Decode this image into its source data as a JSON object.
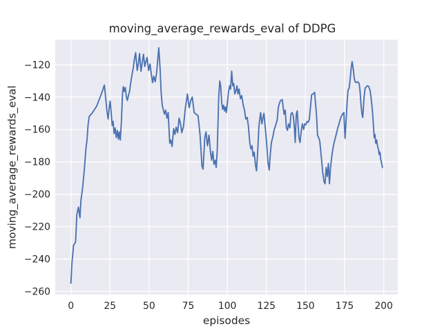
{
  "figure": {
    "title": "moving_average_rewards_eval of DDPG",
    "xlabel": "episodes",
    "ylabel": "moving_average_rewards_eval"
  },
  "chart_data": {
    "type": "line",
    "title": "moving_average_rewards_eval of DDPG",
    "xlabel": "episodes",
    "ylabel": "moving_average_rewards_eval",
    "x_ticks": [
      0,
      25,
      50,
      75,
      100,
      125,
      150,
      175,
      200
    ],
    "y_ticks": [
      -120,
      -140,
      -160,
      -180,
      -200,
      -220,
      -240,
      -260
    ],
    "xlim": [
      -10,
      209
    ],
    "ylim": [
      -262,
      -104.5
    ],
    "grid": true,
    "legend": false,
    "colors": {
      "line": "#4c72b0",
      "plot_background": "#eaeaf2",
      "grid": "#ffffff",
      "text": "#262626",
      "figure_background": "#ffffff"
    },
    "series": [
      {
        "name": "moving_average_rewards_eval",
        "points": [
          [
            0,
            -255
          ],
          [
            0.7,
            -242
          ],
          [
            1.2,
            -237
          ],
          [
            1.7,
            -231.5
          ],
          [
            2.4,
            -230.5
          ],
          [
            3,
            -229.5
          ],
          [
            3.4,
            -221
          ],
          [
            3.8,
            -212.5
          ],
          [
            4.8,
            -208
          ],
          [
            5.8,
            -214.5
          ],
          [
            6.4,
            -204
          ],
          [
            7.5,
            -196
          ],
          [
            8.7,
            -183.5
          ],
          [
            9.6,
            -172
          ],
          [
            10.3,
            -166.5
          ],
          [
            11,
            -157
          ],
          [
            11.7,
            -152
          ],
          [
            12.5,
            -151
          ],
          [
            13.5,
            -150
          ],
          [
            14.5,
            -148.5
          ],
          [
            15.5,
            -147
          ],
          [
            16.5,
            -145.5
          ],
          [
            17.5,
            -143
          ],
          [
            18.5,
            -140.5
          ],
          [
            19.5,
            -138
          ],
          [
            20.4,
            -135.5
          ],
          [
            21.4,
            -132.5
          ],
          [
            22.3,
            -141
          ],
          [
            23.1,
            -149
          ],
          [
            23.8,
            -153.5
          ],
          [
            24.5,
            -146.5
          ],
          [
            25.1,
            -142.5
          ],
          [
            25.8,
            -150
          ],
          [
            26.4,
            -157.5
          ],
          [
            27,
            -155
          ],
          [
            27.6,
            -162.5
          ],
          [
            28.3,
            -159
          ],
          [
            29,
            -165
          ],
          [
            29.7,
            -160.5
          ],
          [
            30.4,
            -166
          ],
          [
            31,
            -161.5
          ],
          [
            31.6,
            -166.5
          ],
          [
            32.3,
            -155
          ],
          [
            33,
            -138
          ],
          [
            33.5,
            -133.5
          ],
          [
            34.1,
            -136.5
          ],
          [
            34.8,
            -134
          ],
          [
            35.5,
            -140
          ],
          [
            36.1,
            -142
          ],
          [
            36.8,
            -139
          ],
          [
            37.5,
            -136.5
          ],
          [
            38.2,
            -131.5
          ],
          [
            39,
            -126.5
          ],
          [
            39.8,
            -122.5
          ],
          [
            40.6,
            -116.5
          ],
          [
            41.4,
            -112.5
          ],
          [
            42.4,
            -123.5
          ],
          [
            43.1,
            -119.5
          ],
          [
            43.9,
            -113
          ],
          [
            44.8,
            -124
          ],
          [
            45.6,
            -118.5
          ],
          [
            46.4,
            -113.5
          ],
          [
            47.2,
            -121
          ],
          [
            48,
            -118
          ],
          [
            48.7,
            -115.5
          ],
          [
            49.7,
            -123.5
          ],
          [
            50.6,
            -119.5
          ],
          [
            51.4,
            -125.5
          ],
          [
            52.2,
            -131
          ],
          [
            53,
            -127
          ],
          [
            53.9,
            -130.5
          ],
          [
            54.8,
            -125
          ],
          [
            55.5,
            -117
          ],
          [
            56.2,
            -109.5
          ],
          [
            57,
            -122
          ],
          [
            57.7,
            -137
          ],
          [
            58.4,
            -145
          ],
          [
            59.8,
            -150.5
          ],
          [
            60.6,
            -148
          ],
          [
            61.4,
            -153
          ],
          [
            62.2,
            -149.5
          ],
          [
            63.2,
            -168.5
          ],
          [
            63.9,
            -166.5
          ],
          [
            64.7,
            -170.5
          ],
          [
            65.7,
            -159.5
          ],
          [
            66.5,
            -163
          ],
          [
            67.3,
            -158.5
          ],
          [
            68.2,
            -162
          ],
          [
            69.2,
            -153
          ],
          [
            70.1,
            -156.5
          ],
          [
            70.9,
            -162
          ],
          [
            72,
            -158
          ],
          [
            73.2,
            -146.5
          ],
          [
            74.5,
            -138
          ],
          [
            75.6,
            -146.5
          ],
          [
            76.8,
            -141.5
          ],
          [
            77.6,
            -140
          ],
          [
            78.8,
            -149.5
          ],
          [
            80,
            -150.5
          ],
          [
            81.3,
            -151.5
          ],
          [
            82.6,
            -163.5
          ],
          [
            83.8,
            -182.5
          ],
          [
            84.5,
            -184.5
          ],
          [
            85.6,
            -165
          ],
          [
            86.4,
            -161.5
          ],
          [
            87.3,
            -170
          ],
          [
            88.3,
            -163.5
          ],
          [
            89.2,
            -173.5
          ],
          [
            90,
            -179
          ],
          [
            90.7,
            -173.5
          ],
          [
            91.5,
            -181.5
          ],
          [
            92.2,
            -179
          ],
          [
            92.9,
            -183.5
          ],
          [
            93.6,
            -172
          ],
          [
            94.5,
            -140
          ],
          [
            95.2,
            -130
          ],
          [
            95.8,
            -133.5
          ],
          [
            96.4,
            -143
          ],
          [
            97,
            -147.5
          ],
          [
            97.6,
            -145
          ],
          [
            98.2,
            -148.5
          ],
          [
            98.8,
            -146
          ],
          [
            99.4,
            -149.5
          ],
          [
            100.1,
            -143
          ],
          [
            100.8,
            -136.5
          ],
          [
            101.5,
            -133
          ],
          [
            102.1,
            -135
          ],
          [
            102.8,
            -124
          ],
          [
            103.5,
            -133
          ],
          [
            104.1,
            -131.5
          ],
          [
            104.8,
            -138
          ],
          [
            105.5,
            -136
          ],
          [
            106.2,
            -133
          ],
          [
            106.8,
            -138
          ],
          [
            107.5,
            -135
          ],
          [
            108.4,
            -141
          ],
          [
            109.2,
            -139
          ],
          [
            110.2,
            -145
          ],
          [
            111,
            -148
          ],
          [
            111.8,
            -153.5
          ],
          [
            112.7,
            -152.5
          ],
          [
            113.5,
            -158
          ],
          [
            114.4,
            -168.5
          ],
          [
            115.1,
            -172
          ],
          [
            115.8,
            -170
          ],
          [
            116.5,
            -176.5
          ],
          [
            117.2,
            -174
          ],
          [
            118,
            -182
          ],
          [
            118.7,
            -185.5
          ],
          [
            119.5,
            -172
          ],
          [
            120.2,
            -158
          ],
          [
            121.3,
            -149.5
          ],
          [
            122.1,
            -156.5
          ],
          [
            122.7,
            -153
          ],
          [
            123.4,
            -150
          ],
          [
            124.3,
            -159
          ],
          [
            125.3,
            -170.5
          ],
          [
            126,
            -180.5
          ],
          [
            126.8,
            -185
          ],
          [
            127.5,
            -175
          ],
          [
            128.2,
            -168
          ],
          [
            129,
            -165
          ],
          [
            130,
            -160
          ],
          [
            131.2,
            -156.5
          ],
          [
            131.9,
            -154
          ],
          [
            132.6,
            -146.5
          ],
          [
            133.4,
            -143.5
          ],
          [
            134.1,
            -142
          ],
          [
            135.1,
            -141.5
          ],
          [
            136.3,
            -150.5
          ],
          [
            137,
            -148
          ],
          [
            137.8,
            -159
          ],
          [
            138.5,
            -160.5
          ],
          [
            139.2,
            -156.5
          ],
          [
            140,
            -159
          ],
          [
            140.7,
            -150.5
          ],
          [
            141.4,
            -149.5
          ],
          [
            142.2,
            -151.5
          ],
          [
            142.9,
            -159
          ],
          [
            143.4,
            -168
          ],
          [
            144.1,
            -150.5
          ],
          [
            144.7,
            -148.5
          ],
          [
            145.8,
            -165
          ],
          [
            146.5,
            -168
          ],
          [
            147.3,
            -160.5
          ],
          [
            148,
            -156.5
          ],
          [
            148.8,
            -160
          ],
          [
            149.5,
            -156.5
          ],
          [
            150.2,
            -157
          ],
          [
            151,
            -155
          ],
          [
            151.7,
            -155.5
          ],
          [
            152.4,
            -154
          ],
          [
            153.9,
            -138.5
          ],
          [
            154.9,
            -138
          ],
          [
            155.8,
            -137
          ],
          [
            157,
            -150.5
          ],
          [
            157.7,
            -163.5
          ],
          [
            158.4,
            -165
          ],
          [
            159.1,
            -167
          ],
          [
            160.3,
            -179
          ],
          [
            161,
            -186.5
          ],
          [
            161.8,
            -192
          ],
          [
            162.5,
            -193.5
          ],
          [
            163.2,
            -183.5
          ],
          [
            163.9,
            -189
          ],
          [
            164.6,
            -181
          ],
          [
            165.3,
            -193.5
          ],
          [
            166,
            -183.5
          ],
          [
            166.8,
            -176.5
          ],
          [
            167.5,
            -172
          ],
          [
            168.3,
            -168
          ],
          [
            169.1,
            -165
          ],
          [
            169.9,
            -162
          ],
          [
            170.6,
            -159
          ],
          [
            171.3,
            -157
          ],
          [
            172.1,
            -154
          ],
          [
            172.8,
            -152
          ],
          [
            173.6,
            -150.5
          ],
          [
            174.5,
            -149.5
          ],
          [
            175.3,
            -165.5
          ],
          [
            176.1,
            -152
          ],
          [
            176.6,
            -143
          ],
          [
            177.2,
            -135.5
          ],
          [
            177.9,
            -134.5
          ],
          [
            178.5,
            -129.5
          ],
          [
            179.2,
            -122
          ],
          [
            179.8,
            -118
          ],
          [
            180.5,
            -122.5
          ],
          [
            181.1,
            -128
          ],
          [
            181.7,
            -130.5
          ],
          [
            182.5,
            -131
          ],
          [
            183.4,
            -130.5
          ],
          [
            184.3,
            -131.5
          ],
          [
            184.9,
            -136.5
          ],
          [
            185.5,
            -145
          ],
          [
            186.1,
            -150.5
          ],
          [
            186.6,
            -152.5
          ],
          [
            187.4,
            -140.5
          ],
          [
            188.1,
            -134.5
          ],
          [
            188.9,
            -133.5
          ],
          [
            189.7,
            -133
          ],
          [
            190.5,
            -133.5
          ],
          [
            191.3,
            -136
          ],
          [
            192,
            -141
          ],
          [
            192.7,
            -147.5
          ],
          [
            193.4,
            -157
          ],
          [
            193.9,
            -165
          ],
          [
            194.4,
            -163
          ],
          [
            194.9,
            -168.5
          ],
          [
            195.5,
            -166.5
          ],
          [
            196.1,
            -170.5
          ],
          [
            196.7,
            -172.5
          ],
          [
            197.1,
            -175.5
          ],
          [
            197.6,
            -174
          ],
          [
            198.1,
            -178.5
          ],
          [
            198.6,
            -180.5
          ],
          [
            199.2,
            -183.5
          ]
        ]
      }
    ]
  }
}
